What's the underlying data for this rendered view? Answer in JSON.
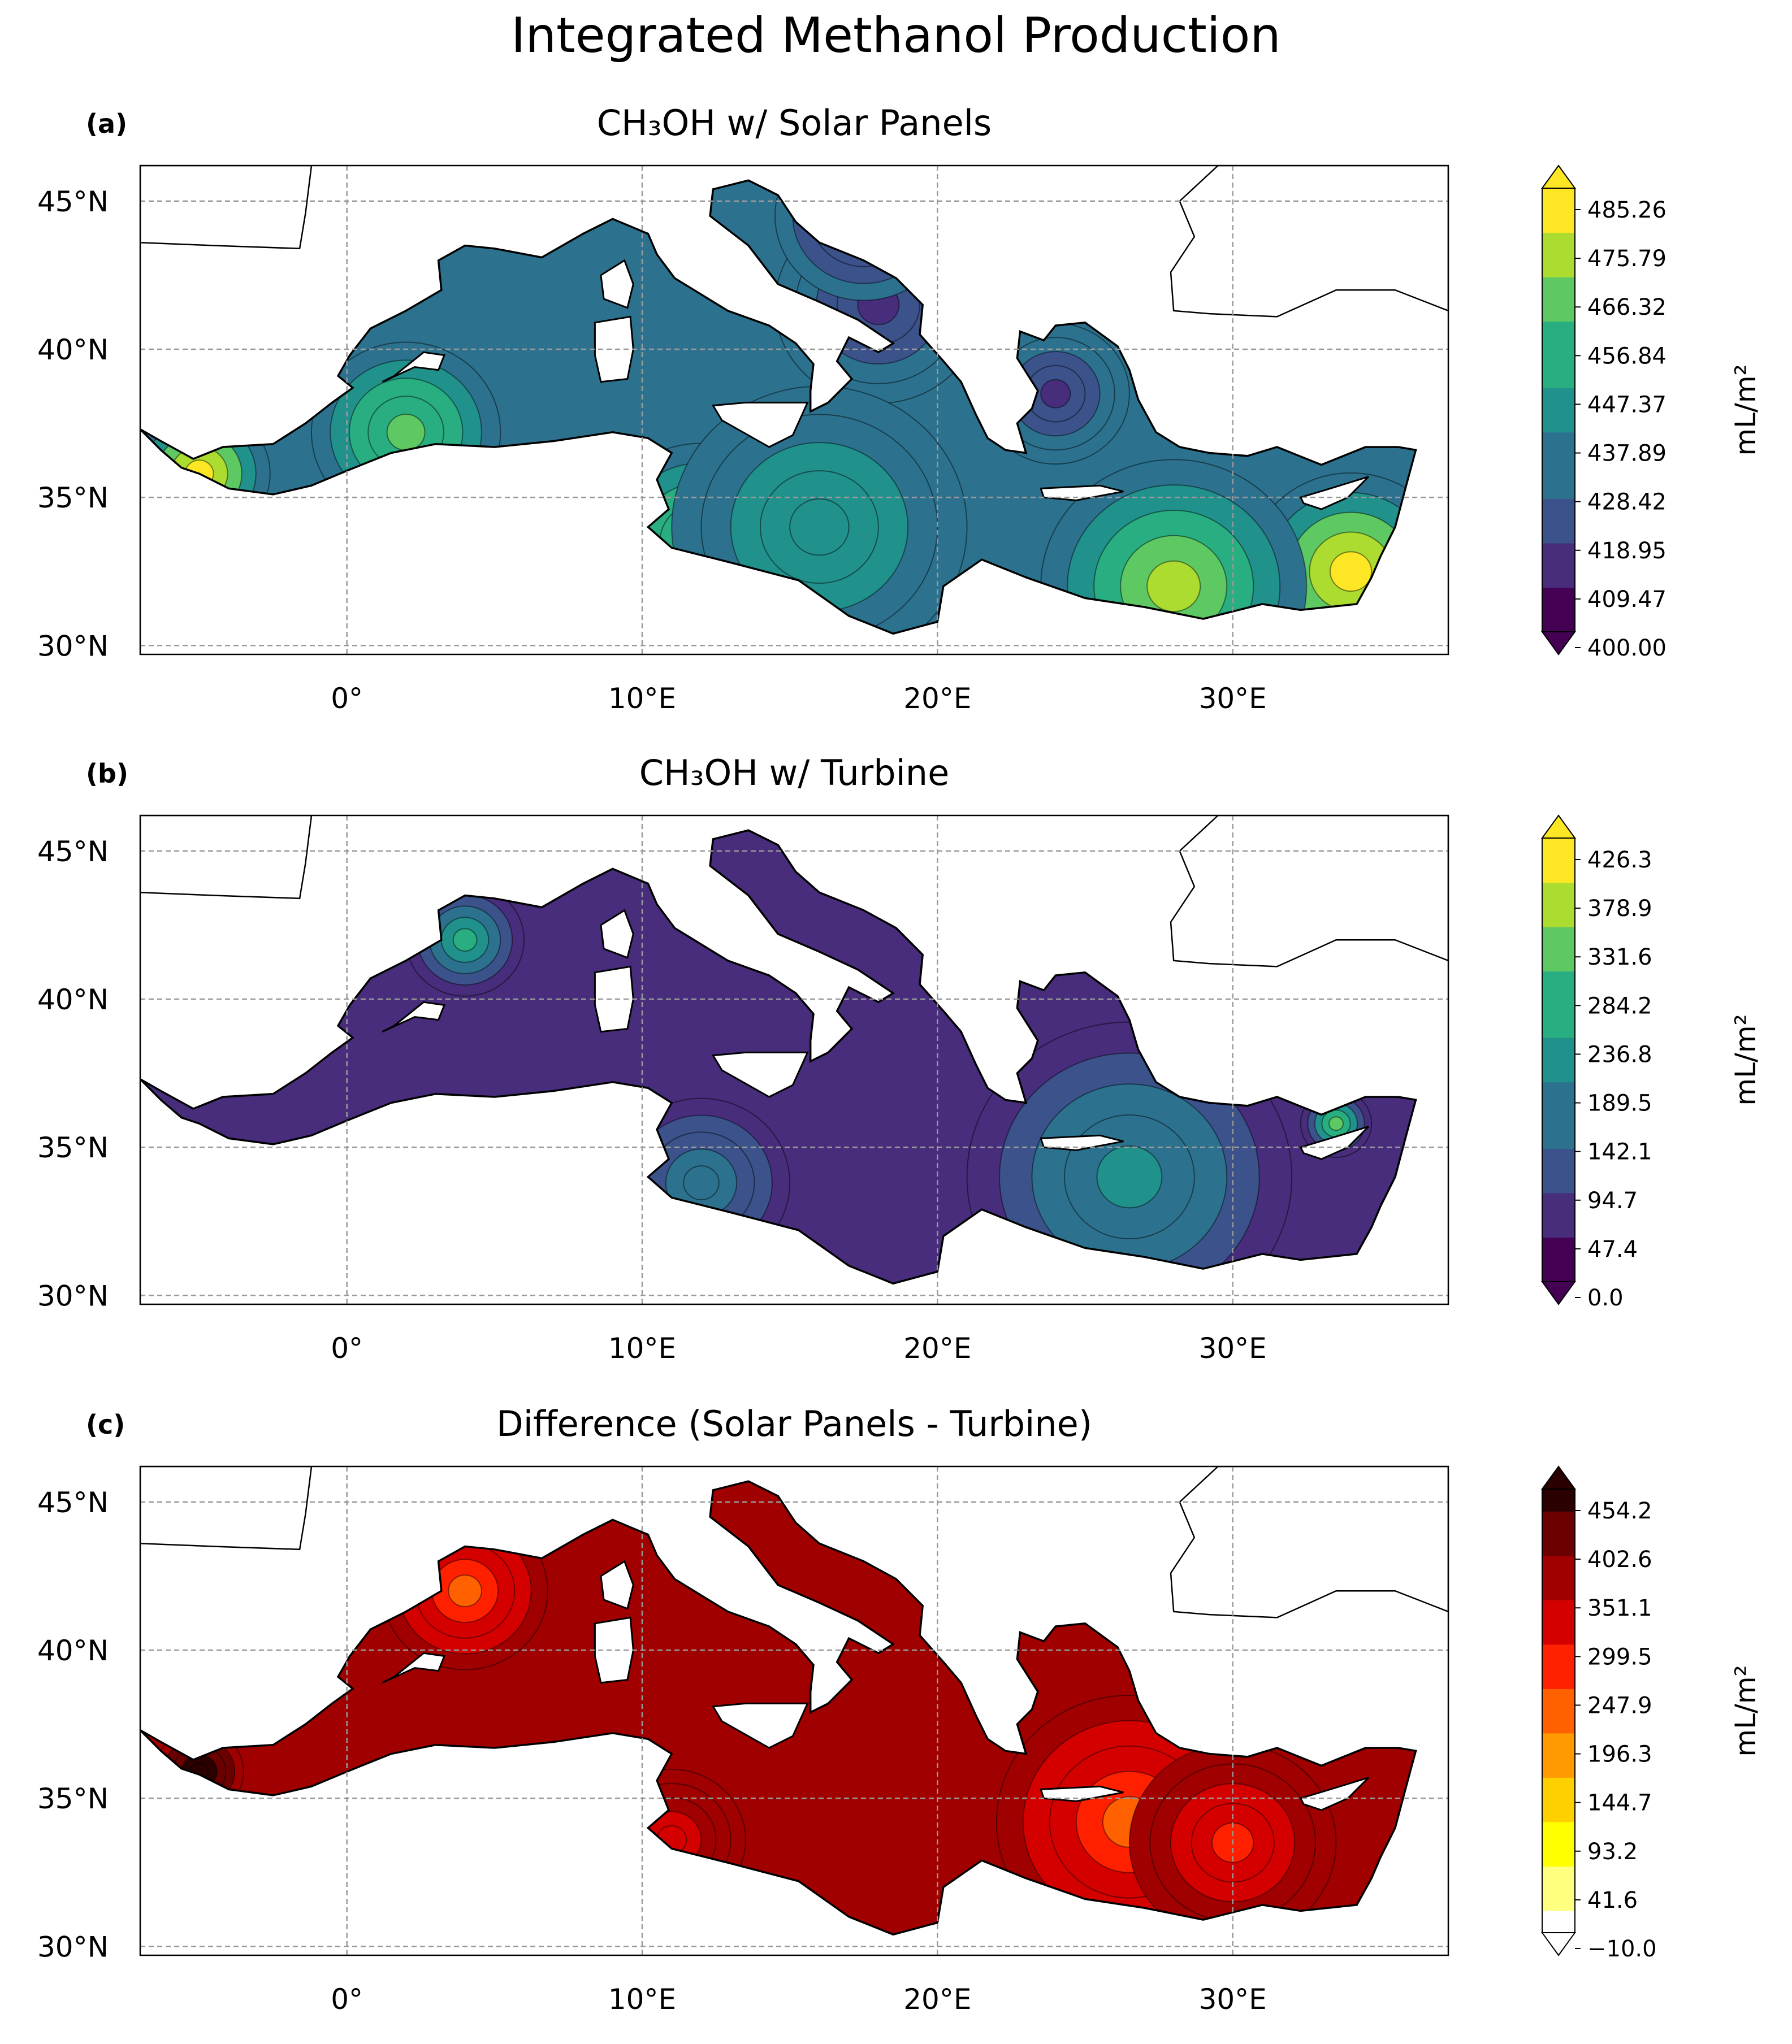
{
  "figure": {
    "title": "Integrated Methanol Production"
  },
  "axes": {
    "x_ticks": [
      "0°",
      "10°E",
      "20°E",
      "30°E"
    ],
    "x_tick_lon": [
      0,
      10,
      20,
      30
    ],
    "y_ticks": [
      "45°N",
      "40°N",
      "35°N",
      "30°N"
    ],
    "y_tick_lat": [
      45,
      40,
      35,
      30
    ],
    "lon_range": [
      -7,
      37.3
    ],
    "lat_range": [
      29.7,
      46.2
    ],
    "gridlines": "dashed"
  },
  "panels": [
    {
      "id": "a",
      "label": "(a)",
      "title": "CH₃OH w/ Solar Panels",
      "colormap": "viridis",
      "colorbar_ticks": [
        "485.26",
        "475.79",
        "466.32",
        "456.84",
        "447.37",
        "437.89",
        "428.42",
        "418.95",
        "409.47",
        "400.00"
      ],
      "colorbar_label": "mL/m²",
      "colorbar_extend": "both"
    },
    {
      "id": "b",
      "label": "(b)",
      "title": "CH₃OH w/ Turbine",
      "colormap": "viridis",
      "colorbar_ticks": [
        "426.3",
        "378.9",
        "331.6",
        "284.2",
        "236.8",
        "189.5",
        "142.1",
        "94.7",
        "47.4",
        "0.0"
      ],
      "colorbar_label": "mL/m²",
      "colorbar_extend": "both"
    },
    {
      "id": "c",
      "label": "(c)",
      "title": "Difference (Solar Panels - Turbine)",
      "colormap": "hot_r",
      "colorbar_ticks": [
        "454.2",
        "402.6",
        "351.1",
        "299.5",
        "247.9",
        "196.3",
        "144.7",
        "93.2",
        "41.6",
        "−10.0"
      ],
      "colorbar_label": "mL/m²",
      "colorbar_extend": "both"
    }
  ],
  "colors": {
    "viridis": [
      "#440154",
      "#472d7b",
      "#3b528b",
      "#2c728e",
      "#21918c",
      "#28ae80",
      "#5ec962",
      "#addc30",
      "#fde725"
    ],
    "hot_r": [
      "#ffffff",
      "#ffff80",
      "#ffff00",
      "#ffd000",
      "#ff9a00",
      "#ff6000",
      "#ff2000",
      "#d40000",
      "#a00000",
      "#6a0000",
      "#2a0000"
    ],
    "coastline": "#000000",
    "grid": "#9a9a9a"
  }
}
